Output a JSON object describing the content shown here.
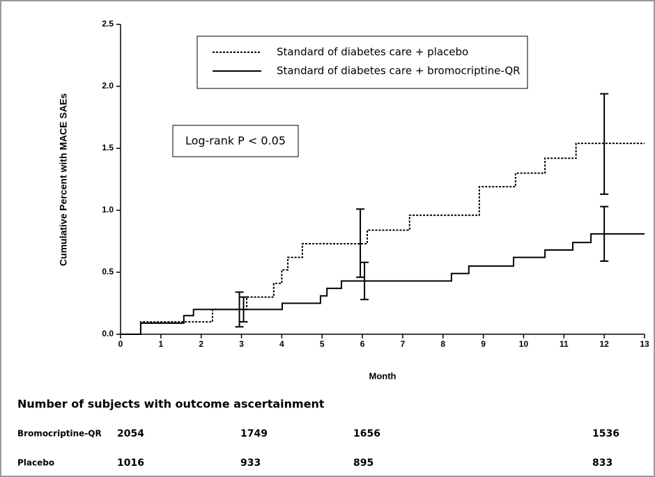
{
  "chart_data": {
    "type": "step-line",
    "xlabel": "Month",
    "ylabel": "Cumulative Percent with MACE SAEs",
    "xlim": [
      0,
      13
    ],
    "xticks": [
      0,
      1,
      2,
      3,
      4,
      5,
      6,
      7,
      8,
      9,
      10,
      11,
      12,
      13
    ],
    "ylim": [
      0,
      2.5
    ],
    "yticks": [
      {
        "value": 0,
        "label": "0.0"
      },
      0.5,
      {
        "value": 1,
        "label": "1.0"
      },
      1.5,
      {
        "value": 2,
        "label": "2.0"
      },
      2.5
    ],
    "annotation": "Log-rank P < 0.05",
    "series": [
      {
        "name": "Standard of diabetes care + placebo",
        "color": "#000000",
        "style": "dotted",
        "x": [
          0,
          0.5,
          2.28,
          3.13,
          3.8,
          4.0,
          4.15,
          4.51,
          6.12,
          7.17,
          8.9,
          9.8,
          10.53,
          11.3,
          13
        ],
        "values": [
          0,
          0.1,
          0.2,
          0.3,
          0.41,
          0.52,
          0.62,
          0.73,
          0.84,
          0.96,
          1.19,
          1.3,
          1.42,
          1.54,
          1.54
        ],
        "error_bars": {
          "x": [
            3,
            6,
            12
          ],
          "lower": [
            0.06,
            0.46,
            1.13
          ],
          "upper": [
            0.34,
            1.01,
            1.94
          ]
        }
      },
      {
        "name": "Standard of diabetes care + bromocriptine-QR",
        "color": "#000000",
        "style": "solid",
        "x": [
          0,
          0.5,
          1.57,
          1.81,
          4.01,
          4.96,
          5.12,
          5.48,
          8.21,
          8.64,
          9.75,
          10.53,
          11.22,
          11.67,
          13
        ],
        "values": [
          0,
          0.09,
          0.15,
          0.2,
          0.25,
          0.31,
          0.37,
          0.43,
          0.49,
          0.55,
          0.62,
          0.68,
          0.74,
          0.81,
          0.81
        ],
        "error_bars": {
          "x": [
            3,
            6,
            12
          ],
          "lower": [
            0.1,
            0.28,
            0.59
          ],
          "upper": [
            0.3,
            0.58,
            1.03
          ]
        }
      }
    ],
    "risk_table": {
      "title": "Number of subjects with outcome ascertainment",
      "rows": [
        {
          "label": "Bromocriptine-QR",
          "counts": [
            2054,
            1749,
            1656,
            1536
          ]
        },
        {
          "label": "Placebo",
          "counts": [
            1016,
            933,
            895,
            833
          ]
        }
      ]
    }
  }
}
